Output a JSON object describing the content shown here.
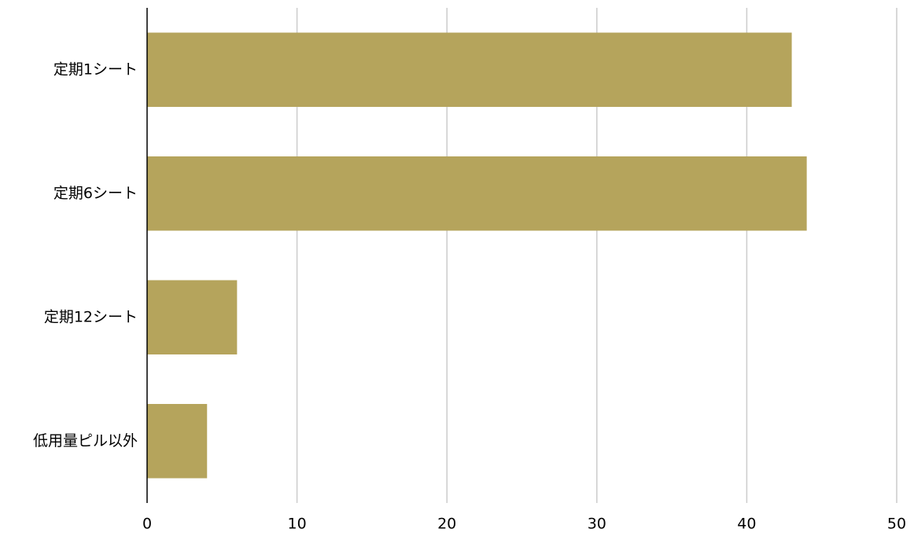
{
  "chart_data": {
    "type": "bar",
    "orientation": "horizontal",
    "categories": [
      "定期1シート",
      "定期6シート",
      "定期12シート",
      "低用量ピル以外"
    ],
    "values": [
      43,
      44,
      6,
      4
    ],
    "xlim": [
      0,
      50
    ],
    "xticks": [
      "0",
      "10",
      "20",
      "30",
      "40",
      "50"
    ],
    "title": "",
    "xlabel": "",
    "ylabel": "",
    "grid": "vertical",
    "legend": "none",
    "bar_color": "#b5a45c"
  }
}
